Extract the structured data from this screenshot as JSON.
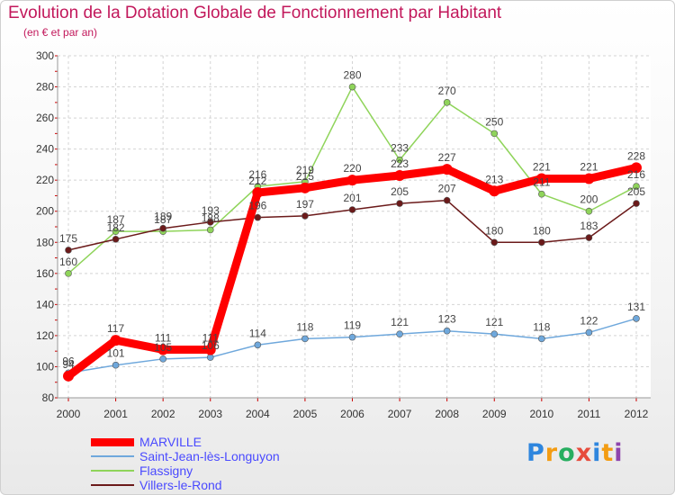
{
  "chart_data": {
    "type": "line",
    "title": "Evolution de la Dotation Globale de Fonctionnement par Habitant",
    "subtitle": "(en € et par an)",
    "x": [
      "2000",
      "2001",
      "2002",
      "2003",
      "2004",
      "2005",
      "2006",
      "2007",
      "2008",
      "2009",
      "2010",
      "2011",
      "2012"
    ],
    "ylim": [
      80,
      300
    ],
    "yticks": [
      80,
      100,
      120,
      140,
      160,
      180,
      200,
      220,
      240,
      260,
      280,
      300
    ],
    "grid": true,
    "legend_position": "bottom-left",
    "series": [
      {
        "name": "MARVILLE",
        "color": "#ff0000",
        "values": [
          94,
          117,
          111,
          111,
          212,
          215,
          220,
          223,
          227,
          213,
          221,
          221,
          228
        ]
      },
      {
        "name": "Saint-Jean-lès-Longuyon",
        "color": "#6fa8dc",
        "values": [
          96,
          101,
          105,
          106,
          114,
          118,
          119,
          121,
          123,
          121,
          118,
          122,
          131
        ]
      },
      {
        "name": "Flassigny",
        "color": "#8fd45a",
        "values": [
          160,
          187,
          187,
          188,
          216,
          219,
          280,
          233,
          270,
          250,
          211,
          200,
          216
        ]
      },
      {
        "name": "Villers-le-Rond",
        "color": "#6b1a1a",
        "values": [
          175,
          182,
          189,
          193,
          196,
          197,
          201,
          205,
          207,
          180,
          180,
          183,
          205
        ]
      }
    ]
  },
  "brand": {
    "letters": [
      "P",
      "r",
      "o",
      "x",
      "i",
      "t",
      "i"
    ],
    "colors": [
      "#2e86de",
      "#f39c12",
      "#27ae60",
      "#e74c3c",
      "#2e86de",
      "#f39c12",
      "#8e44ad"
    ]
  }
}
